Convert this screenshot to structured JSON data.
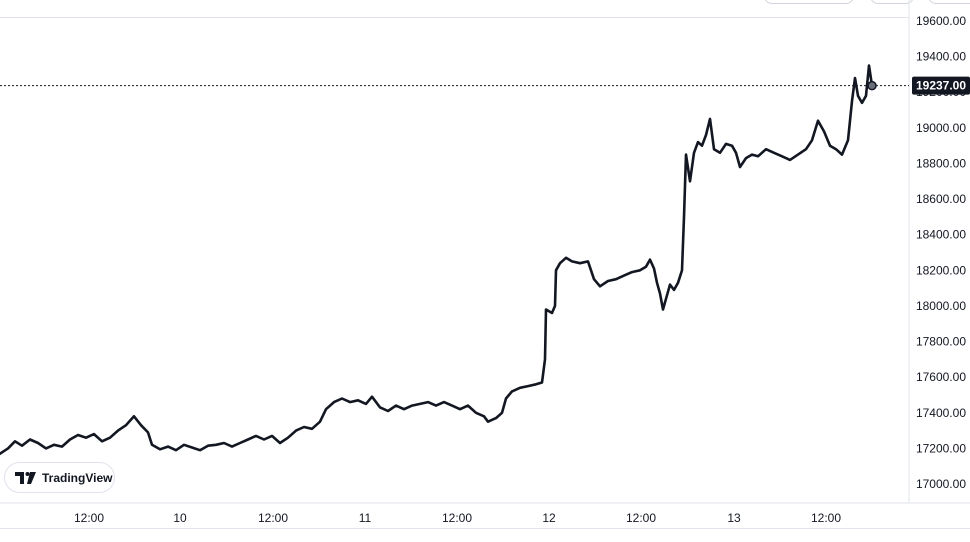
{
  "app": {
    "brand": "TradingView",
    "brand_icon": "tradingview-logo-icon"
  },
  "current_price": {
    "value": 19237.0,
    "label": "19237.00"
  },
  "colors": {
    "line": "#131722",
    "crosshair": "#131722",
    "grid": "#e0e3eb",
    "badge_bg": "#131722",
    "badge_text": "#ffffff"
  },
  "chart_data": {
    "type": "line",
    "y_ticks": [
      "19600.00",
      "19400.00",
      "19200.00",
      "19000.00",
      "18800.00",
      "18600.00",
      "18400.00",
      "18200.00",
      "18000.00",
      "17800.00",
      "17600.00",
      "17400.00",
      "17200.00",
      "17000.00"
    ],
    "x_ticks": [
      "12:00",
      "10",
      "12:00",
      "11",
      "12:00",
      "12",
      "12:00",
      "13",
      "12:00"
    ],
    "ylim": [
      16900,
      19650
    ],
    "xlim": [
      0,
      970
    ],
    "series": [
      {
        "values": [
          [
            0,
            17170
          ],
          [
            8,
            17200
          ],
          [
            15,
            17240
          ],
          [
            22,
            17215
          ],
          [
            30,
            17250
          ],
          [
            38,
            17230
          ],
          [
            46,
            17200
          ],
          [
            54,
            17220
          ],
          [
            62,
            17210
          ],
          [
            70,
            17250
          ],
          [
            78,
            17275
          ],
          [
            86,
            17260
          ],
          [
            94,
            17280
          ],
          [
            102,
            17240
          ],
          [
            110,
            17260
          ],
          [
            118,
            17300
          ],
          [
            126,
            17330
          ],
          [
            134,
            17380
          ],
          [
            141,
            17330
          ],
          [
            148,
            17290
          ],
          [
            152,
            17220
          ],
          [
            160,
            17195
          ],
          [
            168,
            17210
          ],
          [
            176,
            17190
          ],
          [
            184,
            17220
          ],
          [
            192,
            17205
          ],
          [
            200,
            17190
          ],
          [
            208,
            17215
          ],
          [
            216,
            17220
          ],
          [
            224,
            17230
          ],
          [
            232,
            17210
          ],
          [
            240,
            17230
          ],
          [
            248,
            17250
          ],
          [
            256,
            17270
          ],
          [
            264,
            17250
          ],
          [
            272,
            17270
          ],
          [
            280,
            17230
          ],
          [
            288,
            17260
          ],
          [
            296,
            17300
          ],
          [
            304,
            17320
          ],
          [
            312,
            17310
          ],
          [
            320,
            17350
          ],
          [
            326,
            17420
          ],
          [
            334,
            17460
          ],
          [
            342,
            17480
          ],
          [
            350,
            17460
          ],
          [
            358,
            17470
          ],
          [
            366,
            17450
          ],
          [
            372,
            17490
          ],
          [
            380,
            17430
          ],
          [
            388,
            17410
          ],
          [
            396,
            17440
          ],
          [
            404,
            17420
          ],
          [
            412,
            17440
          ],
          [
            420,
            17450
          ],
          [
            428,
            17460
          ],
          [
            436,
            17440
          ],
          [
            444,
            17460
          ],
          [
            452,
            17440
          ],
          [
            460,
            17420
          ],
          [
            468,
            17440
          ],
          [
            476,
            17400
          ],
          [
            484,
            17380
          ],
          [
            488,
            17350
          ],
          [
            496,
            17370
          ],
          [
            502,
            17400
          ],
          [
            506,
            17480
          ],
          [
            512,
            17520
          ],
          [
            520,
            17540
          ],
          [
            528,
            17550
          ],
          [
            536,
            17560
          ],
          [
            542,
            17570
          ],
          [
            545,
            17700
          ],
          [
            546,
            17980
          ],
          [
            552,
            17960
          ],
          [
            555,
            18000
          ],
          [
            556,
            18200
          ],
          [
            560,
            18240
          ],
          [
            566,
            18270
          ],
          [
            572,
            18250
          ],
          [
            580,
            18240
          ],
          [
            588,
            18250
          ],
          [
            594,
            18150
          ],
          [
            600,
            18110
          ],
          [
            608,
            18140
          ],
          [
            616,
            18150
          ],
          [
            624,
            18170
          ],
          [
            632,
            18190
          ],
          [
            640,
            18200
          ],
          [
            646,
            18220
          ],
          [
            650,
            18260
          ],
          [
            654,
            18210
          ],
          [
            657,
            18130
          ],
          [
            660,
            18070
          ],
          [
            663,
            17980
          ],
          [
            666,
            18040
          ],
          [
            670,
            18120
          ],
          [
            674,
            18090
          ],
          [
            678,
            18130
          ],
          [
            682,
            18200
          ],
          [
            684,
            18500
          ],
          [
            686,
            18850
          ],
          [
            690,
            18700
          ],
          [
            694,
            18860
          ],
          [
            698,
            18920
          ],
          [
            702,
            18900
          ],
          [
            706,
            18960
          ],
          [
            710,
            19050
          ],
          [
            714,
            18880
          ],
          [
            720,
            18860
          ],
          [
            726,
            18910
          ],
          [
            732,
            18900
          ],
          [
            736,
            18860
          ],
          [
            740,
            18780
          ],
          [
            746,
            18830
          ],
          [
            752,
            18850
          ],
          [
            758,
            18840
          ],
          [
            766,
            18880
          ],
          [
            774,
            18860
          ],
          [
            782,
            18840
          ],
          [
            790,
            18820
          ],
          [
            798,
            18850
          ],
          [
            806,
            18880
          ],
          [
            812,
            18930
          ],
          [
            818,
            19040
          ],
          [
            824,
            18980
          ],
          [
            830,
            18900
          ],
          [
            836,
            18880
          ],
          [
            842,
            18850
          ],
          [
            848,
            18930
          ],
          [
            852,
            19150
          ],
          [
            855,
            19280
          ],
          [
            858,
            19180
          ],
          [
            862,
            19140
          ],
          [
            866,
            19180
          ],
          [
            869,
            19350
          ],
          [
            872,
            19237
          ]
        ]
      }
    ]
  }
}
